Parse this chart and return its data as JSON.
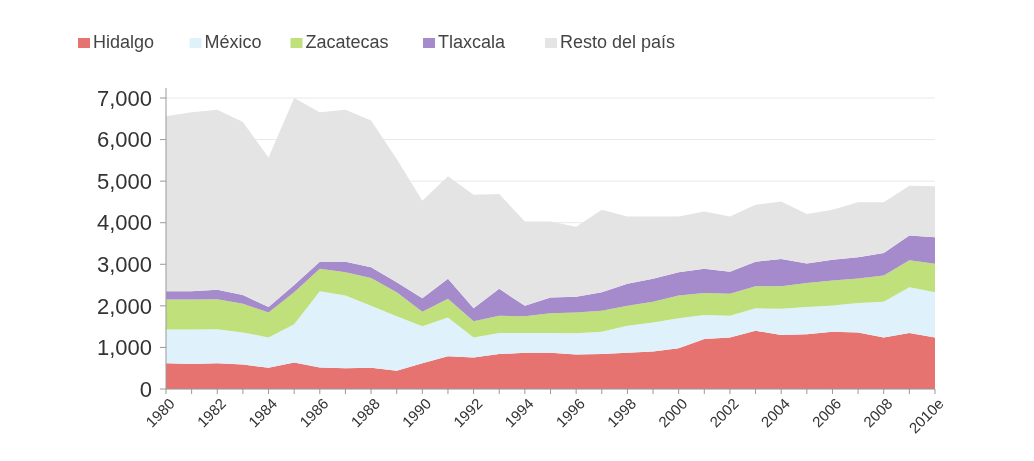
{
  "chart_data": {
    "type": "area",
    "stacked": true,
    "legend": "top",
    "grid": "y",
    "categories": [
      "1980",
      null,
      "1982",
      null,
      "1984",
      null,
      "1986",
      null,
      "1988",
      null,
      "1990",
      null,
      "1992",
      null,
      "1994",
      null,
      "1996",
      null,
      "1998",
      null,
      "2000",
      null,
      "2002",
      null,
      "2004",
      null,
      "2006",
      null,
      "2008",
      null,
      "2010e"
    ],
    "ylim": [
      0,
      7000
    ],
    "yticks": [
      {
        "value": 0,
        "label": "0"
      },
      {
        "value": 1000,
        "label": "1,000"
      },
      {
        "value": 2000,
        "label": "2,000"
      },
      {
        "value": 3000,
        "label": "3,000"
      },
      {
        "value": 4000,
        "label": "4,000"
      },
      {
        "value": 5000,
        "label": "5,000"
      },
      {
        "value": 6000,
        "label": "6,000"
      },
      {
        "value": 7000,
        "label": "7,000"
      }
    ],
    "series": [
      {
        "name": "Hidalgo",
        "color": "#e6736f",
        "values": [
          620,
          600,
          620,
          590,
          510,
          640,
          520,
          500,
          510,
          440,
          620,
          790,
          760,
          840,
          870,
          870,
          830,
          840,
          870,
          900,
          980,
          1200,
          1240,
          1400,
          1300,
          1320,
          1380,
          1360,
          1240,
          1350,
          1240
        ]
      },
      {
        "name": "México",
        "color": "#dff1fb",
        "values": [
          810,
          830,
          820,
          770,
          730,
          920,
          1830,
          1750,
          1490,
          1310,
          890,
          930,
          480,
          510,
          480,
          480,
          510,
          540,
          650,
          700,
          720,
          580,
          520,
          540,
          630,
          650,
          630,
          710,
          860,
          1100,
          1090
        ]
      },
      {
        "name": "Zacatecas",
        "color": "#bfe07a",
        "values": [
          720,
          720,
          720,
          690,
          600,
          770,
          540,
          560,
          670,
          580,
          350,
          450,
          390,
          410,
          400,
          470,
          500,
          500,
          480,
          500,
          550,
          530,
          530,
          530,
          540,
          580,
          600,
          590,
          630,
          650,
          680
        ]
      },
      {
        "name": "Tlaxcala",
        "color": "#a68bcc",
        "values": [
          200,
          200,
          230,
          210,
          130,
          170,
          170,
          250,
          260,
          240,
          320,
          480,
          310,
          650,
          250,
          380,
          380,
          450,
          530,
          550,
          560,
          580,
          530,
          590,
          660,
          470,
          500,
          510,
          540,
          590,
          640
        ]
      },
      {
        "name": "Resto del país",
        "color": "#e4e4e4",
        "values": [
          4210,
          4310,
          4330,
          4160,
          3600,
          4500,
          3600,
          3660,
          3530,
          2960,
          2350,
          2470,
          2730,
          2280,
          2030,
          1830,
          1680,
          1980,
          1620,
          1500,
          1340,
          1380,
          1330,
          1370,
          1380,
          1190,
          1200,
          1320,
          1220,
          1200,
          1230
        ]
      }
    ]
  }
}
